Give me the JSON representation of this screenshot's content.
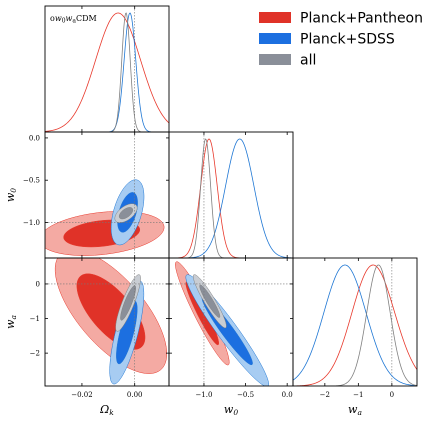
{
  "chart_data": {
    "type": "corner",
    "model_label": "o$w_0w_a$CDM",
    "params": [
      {
        "key": "omk",
        "label": "Ωk",
        "range": [
          -0.034,
          0.013
        ],
        "ticks": [
          {
            "v": -0.02,
            "t": "−0.02"
          },
          {
            "v": 0.0,
            "t": "0.00"
          }
        ],
        "ref": 0.0
      },
      {
        "key": "w0",
        "label": "w0",
        "range": [
          -1.42,
          0.07
        ],
        "ticks": [
          {
            "v": -1.0,
            "t": "−1.0"
          },
          {
            "v": -0.5,
            "t": "−0.5"
          },
          {
            "v": 0.0,
            "t": "0.0"
          }
        ],
        "ref": -1.0
      },
      {
        "key": "wa",
        "label": "wa",
        "range": [
          -2.95,
          0.75
        ],
        "ticks": [
          {
            "v": -2,
            "t": "−2"
          },
          {
            "v": -1,
            "t": "−1"
          },
          {
            "v": 0,
            "t": "0"
          }
        ],
        "ref": 0.0
      }
    ],
    "series": [
      {
        "name": "Planck+Pantheon",
        "color": "#e8392c",
        "fill_inner": "#e03228",
        "fill_outer": "#f4aaa3"
      },
      {
        "name": "Planck+SDSS",
        "color": "#1f77d4",
        "fill_inner": "#1c6fe0",
        "fill_outer": "#a7ccf2"
      },
      {
        "name": "all",
        "color": "#808080",
        "fill_inner": "#8a8f99",
        "fill_outer": "#c9cdd3"
      }
    ],
    "marginals": {
      "omk": [
        {
          "series": 0,
          "mean": -0.0063,
          "sd": 0.0085
        },
        {
          "series": 1,
          "mean": -0.0018,
          "sd": 0.0022
        },
        {
          "series": 2,
          "mean": -0.0033,
          "sd": 0.0016
        }
      ],
      "w0": [
        {
          "series": 0,
          "mean": -0.95,
          "sd": 0.1,
          "skew": 0.22
        },
        {
          "series": 1,
          "mean": -0.57,
          "sd": 0.17
        },
        {
          "series": 2,
          "mean": -0.98,
          "sd": 0.06
        }
      ],
      "wa": [
        {
          "series": 0,
          "mean": -0.45,
          "sd": 0.65,
          "skew": -0.35
        },
        {
          "series": 1,
          "mean": -1.4,
          "sd": 0.63
        },
        {
          "series": 2,
          "mean": -0.4,
          "sd": 0.35
        }
      ]
    },
    "contours2d": {
      "w0_vs_omk": [
        {
          "series": 0,
          "cx": -0.0125,
          "cy": -1.13,
          "sx": 0.0095,
          "sy": 0.105,
          "rho": 0.28
        },
        {
          "series": 1,
          "cx": -0.0027,
          "cy": -0.88,
          "sx": 0.0025,
          "sy": 0.155,
          "rho": 0.48
        },
        {
          "series": 2,
          "cx": -0.0033,
          "cy": -0.89,
          "sx": 0.0017,
          "sy": 0.045,
          "rho": 0.55
        }
      ],
      "wa_vs_omk": [
        {
          "series": 0,
          "cx": -0.009,
          "cy": -0.8,
          "sx": 0.0085,
          "sy": 0.72,
          "rho": -0.68
        },
        {
          "series": 1,
          "cx": -0.003,
          "cy": -1.4,
          "sx": 0.0026,
          "sy": 0.6,
          "rho": 0.74
        },
        {
          "series": 2,
          "cx": -0.0025,
          "cy": -0.55,
          "sx": 0.0019,
          "sy": 0.33,
          "rho": 0.86
        }
      ],
      "wa_vs_w0": [
        {
          "series": 0,
          "cx": -1.02,
          "cy": -0.85,
          "sx": 0.13,
          "sy": 0.6,
          "rho": -0.945
        },
        {
          "series": 1,
          "cx": -0.72,
          "cy": -1.35,
          "sx": 0.2,
          "sy": 0.65,
          "rho": -0.955
        },
        {
          "series": 2,
          "cx": -0.93,
          "cy": -0.5,
          "sx": 0.08,
          "sy": 0.31,
          "rho": -0.93
        }
      ]
    },
    "legend": {
      "position": "top-right"
    }
  }
}
